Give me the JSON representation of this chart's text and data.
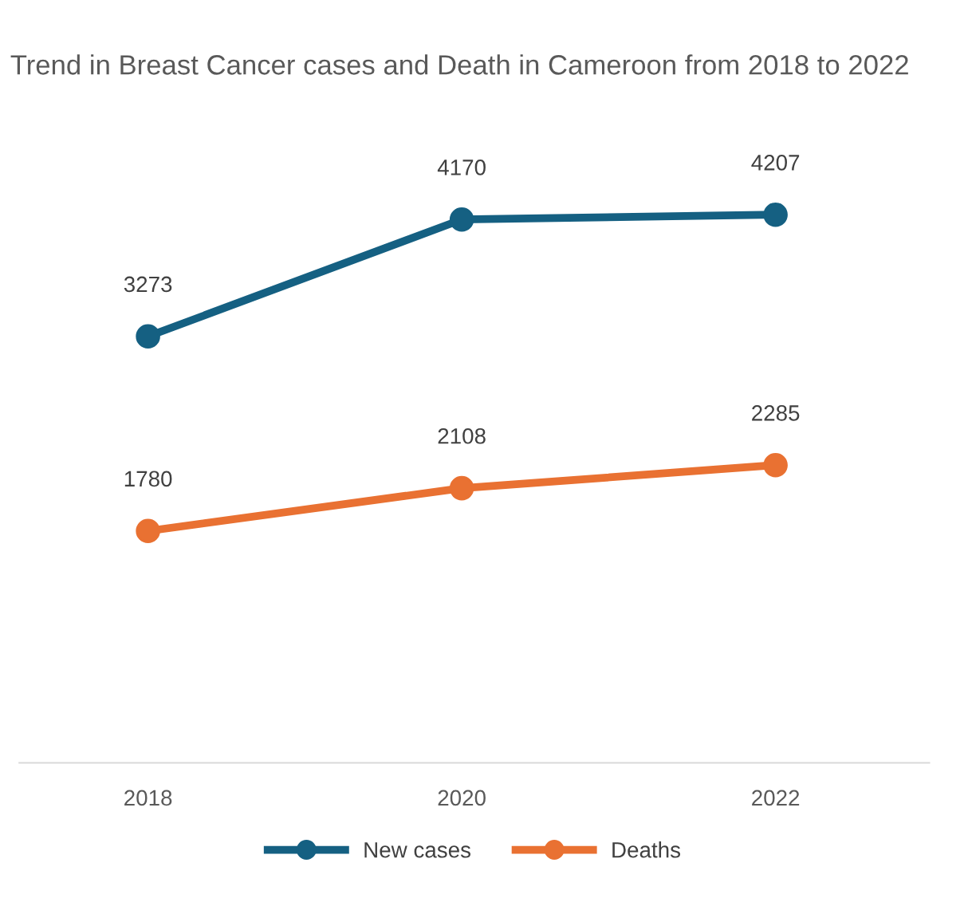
{
  "chart_data": {
    "type": "line",
    "title": "Trend in Breast Cancer cases and Death in Cameroon from 2018 to 2022",
    "categories": [
      "2018",
      "2020",
      "2022"
    ],
    "series": [
      {
        "name": "New cases",
        "color": "#156082",
        "values": [
          3273,
          4170,
          4207
        ]
      },
      {
        "name": "Deaths",
        "color": "#e97132",
        "values": [
          1780,
          2108,
          2285
        ]
      }
    ],
    "tick_labels": "x",
    "data_labels": true,
    "legend": "bottom",
    "marker": "circle",
    "line_style": "solid",
    "grid": false
  }
}
